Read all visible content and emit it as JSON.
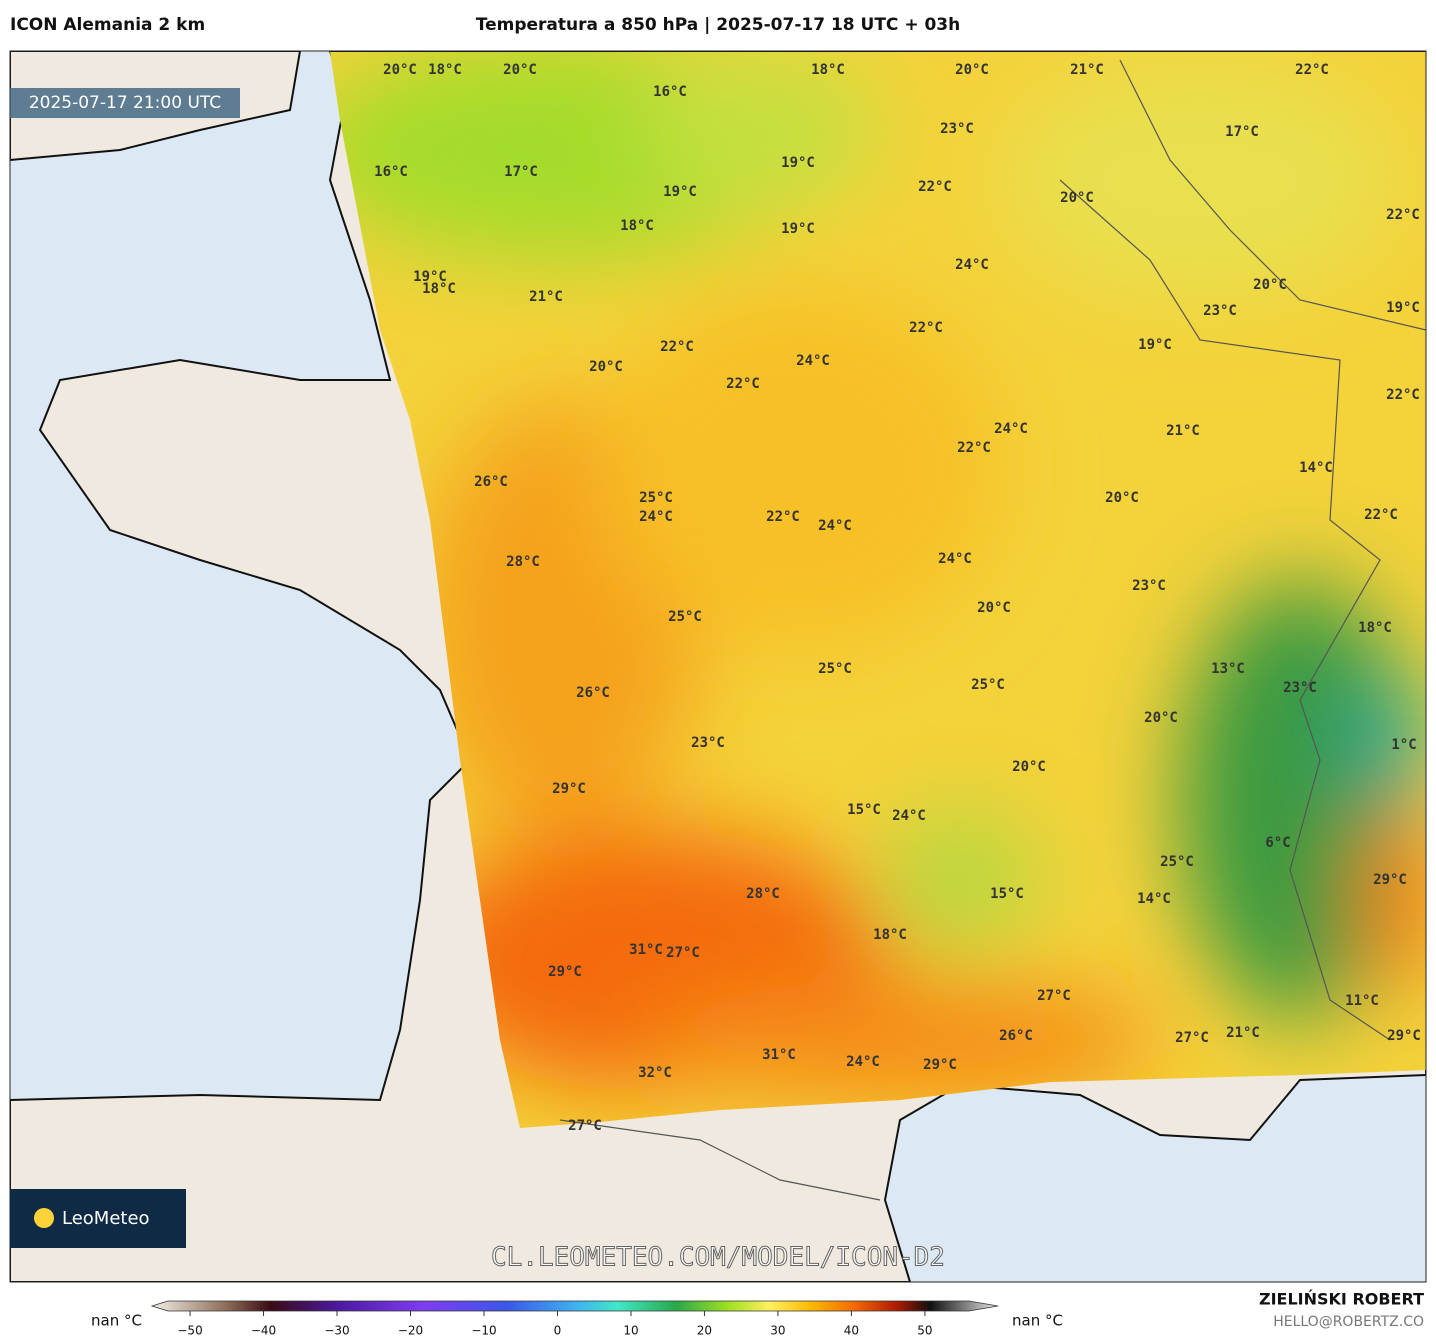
{
  "header": {
    "model": "ICON Alemania 2 km",
    "title": "Temperatura a 850 hPa | 2025-07-17 18 UTC + 03h"
  },
  "valid_time": "2025-07-17 21:00 UTC",
  "logo": "LeoMeteo",
  "watermark": "CL.LEOMETEO.COM/MODEL/ICON-D2",
  "credit": {
    "author": "ZIELIŃSKI ROBERT",
    "email": "HELLO@ROBERTZ.CO"
  },
  "colorbar": {
    "label_left": "nan °C",
    "label_right": "nan °C",
    "lim": [
      -53,
      56
    ],
    "ticks": [
      {
        "value": -50,
        "label": "−50"
      },
      {
        "value": -40,
        "label": "−40"
      },
      {
        "value": -30,
        "label": "−30"
      },
      {
        "value": -20,
        "label": "−20"
      },
      {
        "value": -10,
        "label": "−10"
      },
      0,
      10,
      20,
      30,
      40,
      50
    ]
  },
  "labels": [
    "20°C",
    "18°C",
    "20°C",
    "16°C",
    "18°C",
    "20°C",
    "21°C",
    "22°C",
    "23°C",
    "17°C",
    "16°C",
    "17°C",
    "19°C",
    "19°C",
    "22°C",
    "20°C",
    "22°C",
    "18°C",
    "19°C",
    "24°C",
    "20°C",
    "19°C",
    "18°C",
    "21°C",
    "23°C",
    "19°C",
    "22°C",
    "19°C",
    "22°C",
    "24°C",
    "20°C",
    "22°C",
    "22°C",
    "24°C",
    "21°C",
    "22°C",
    "14°C",
    "26°C",
    "25°C",
    "20°C",
    "24°C",
    "22°C",
    "24°C",
    "22°C",
    "24°C",
    "28°C",
    "23°C",
    "20°C",
    "25°C",
    "18°C",
    "25°C",
    "13°C",
    "25°C",
    "23°C",
    "26°C",
    "20°C",
    "23°C",
    "1°C",
    "20°C",
    "29°C",
    "15°C",
    "24°C",
    "6°C",
    "25°C",
    "29°C",
    "28°C",
    "15°C",
    "14°C",
    "18°C",
    "31°C",
    "27°C",
    "29°C",
    "27°C",
    "11°C",
    "26°C",
    "27°C",
    "21°C",
    "29°C",
    "31°C",
    "24°C",
    "29°C",
    "32°C",
    "27°C"
  ]
}
